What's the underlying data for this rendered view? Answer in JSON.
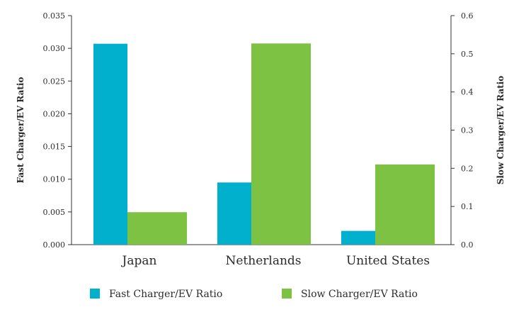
{
  "chart_data": {
    "type": "bar",
    "categories": [
      "Japan",
      "Netherlands",
      "United States"
    ],
    "series": [
      {
        "name": "Fast Charger/EV Ratio",
        "axis": "left",
        "color": "#00b0cc",
        "values": [
          0.0307,
          0.0095,
          0.0021
        ]
      },
      {
        "name": "Slow Charger/EV Ratio",
        "axis": "right",
        "color": "#7dc242",
        "values": [
          0.085,
          0.527,
          0.21
        ]
      }
    ],
    "y_left": {
      "label": "Fast Charger/EV Ratio",
      "range": [
        0,
        0.035
      ],
      "ticks": [
        "0.000",
        "0.005",
        "0.010",
        "0.015",
        "0.020",
        "0.025",
        "0.030",
        "0.035"
      ]
    },
    "y_right": {
      "label": "Slow Charger/EV Ratio",
      "range": [
        0,
        0.6
      ],
      "ticks": [
        "0.0",
        "0.1",
        "0.2",
        "0.3",
        "0.4",
        "0.5",
        "0.6"
      ]
    },
    "legend_position": "bottom",
    "grid": false,
    "title": ""
  }
}
